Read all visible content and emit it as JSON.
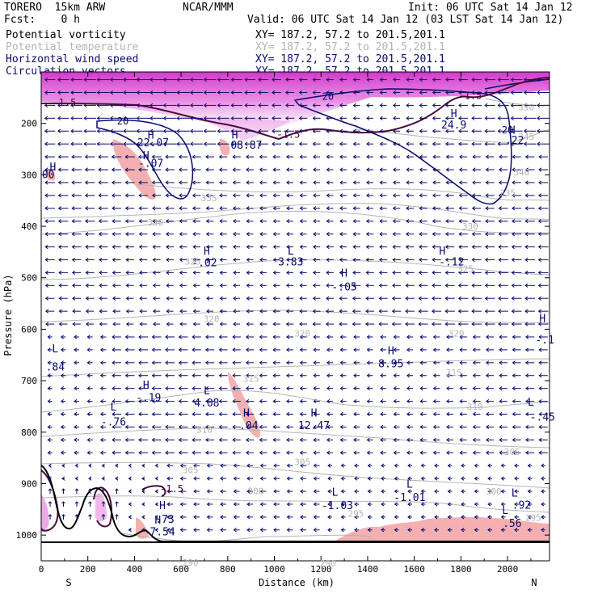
{
  "header": {
    "model": "TORERO  15km ARW",
    "org": "NCAR/MMM",
    "init": "Init: 06 UTC Sat 14 Jan 12",
    "fcst": "Fcst:    0 h",
    "valid": "Valid: 06 UTC Sat 14 Jan 12 (03 LST Sat 14 Jan 12)"
  },
  "fields": [
    {
      "name": "Potential vorticity",
      "xy": "XY= 187.2, 57.2 to 201.5,201.1",
      "color": "#000000"
    },
    {
      "name": "Potential temperature",
      "xy": "XY= 187.2, 57.2 to 201.5,201.1",
      "color": "#b4b4b4"
    },
    {
      "name": "Horizontal wind speed",
      "xy": "XY= 187.2, 57.2 to 201.5,201.1",
      "color": "#0a0a6e"
    },
    {
      "name": "Circulation vectors",
      "xy": "XY= 187.2, 57.2 to 201.5,201.1",
      "color": "#0a0a6e"
    }
  ],
  "colors": {
    "pv_high": "#e040d8",
    "pv_neg": "#f4b0b0",
    "wind_contour": "#0a0a6e",
    "pv_contour": "#4a0a3a",
    "theta_contour": "#b4b4b4",
    "vectors": "#0a0a6e"
  },
  "chart_data": {
    "type": "cross-section",
    "xlabel": "Distance (km)",
    "ylabel": "Pressure (hPa)",
    "xlim": [
      0,
      2180
    ],
    "ylim": [
      1050,
      100
    ],
    "x_ticks": [
      0,
      200,
      400,
      600,
      800,
      1000,
      1200,
      1400,
      1600,
      1800,
      2000
    ],
    "y_ticks": [
      200,
      300,
      400,
      500,
      600,
      700,
      800,
      900,
      1000
    ],
    "endpoints": {
      "left": "S",
      "right": "N"
    },
    "theta_labels": [
      {
        "text": "350",
        "x": 2080,
        "y": 168
      },
      {
        "text": "345",
        "x": 2080,
        "y": 226
      },
      {
        "text": "340",
        "x": 2060,
        "y": 295
      },
      {
        "text": "335",
        "x": 2000,
        "y": 335
      },
      {
        "text": "335",
        "x": 720,
        "y": 345
      },
      {
        "text": "330",
        "x": 490,
        "y": 392
      },
      {
        "text": "330",
        "x": 1840,
        "y": 400
      },
      {
        "text": "325",
        "x": 650,
        "y": 468
      },
      {
        "text": "325",
        "x": 1820,
        "y": 482
      },
      {
        "text": "320",
        "x": 730,
        "y": 580
      },
      {
        "text": "320",
        "x": 1120,
        "y": 608
      },
      {
        "text": "320",
        "x": 1780,
        "y": 608
      },
      {
        "text": "315",
        "x": 900,
        "y": 696
      },
      {
        "text": "315",
        "x": 1770,
        "y": 684
      },
      {
        "text": "310",
        "x": 700,
        "y": 795
      },
      {
        "text": "310",
        "x": 1860,
        "y": 750
      },
      {
        "text": "305",
        "x": 640,
        "y": 873
      },
      {
        "text": "305",
        "x": 1120,
        "y": 858
      },
      {
        "text": "305",
        "x": 2020,
        "y": 838
      },
      {
        "text": "300",
        "x": 920,
        "y": 914
      },
      {
        "text": "300",
        "x": 1940,
        "y": 915
      },
      {
        "text": "295",
        "x": 1350,
        "y": 958
      },
      {
        "text": "295",
        "x": 2110,
        "y": 966
      },
      {
        "text": "290",
        "x": 1230,
        "y": 1055
      },
      {
        "text": "290",
        "x": 640,
        "y": 1053
      }
    ],
    "wind_labels": [
      {
        "text": "20",
        "x": 1230,
        "y": 148
      },
      {
        "text": "20",
        "x": 350,
        "y": 196
      },
      {
        "text": "20",
        "x": 2000,
        "y": 213
      }
    ],
    "pv_labels": [
      {
        "text": "-1.5",
        "x": 100,
        "y": 160
      },
      {
        "text": "-1.5",
        "x": 1060,
        "y": 222
      },
      {
        "text": "-1.5",
        "x": 1840,
        "y": 146
      },
      {
        "text": "-1.5",
        "x": 560,
        "y": 910
      }
    ],
    "extrema": [
      {
        "kind": "H",
        "value": "22.07",
        "x": 480,
        "y": 237,
        "hx": 470,
        "hy": 222
      },
      {
        "kind": "H",
        "value": "-.07",
        "x": 470,
        "y": 277,
        "hx": 450,
        "hy": 262
      },
      {
        "kind": "H",
        "value": "00",
        "x": 30,
        "y": 299,
        "hx": 50,
        "hy": 284
      },
      {
        "kind": "H",
        "value": "08.87",
        "x": 880,
        "y": 241,
        "hx": 830,
        "hy": 222
      },
      {
        "kind": "H",
        "value": "24.9",
        "x": 1770,
        "y": 202,
        "hx": 1770,
        "hy": 180
      },
      {
        "kind": "H",
        "value": ".22",
        "x": 2030,
        "y": 232,
        "hx": 2020,
        "hy": 212
      },
      {
        "kind": "H",
        "value": "-.02",
        "x": 700,
        "y": 470,
        "hx": 710,
        "hy": 447
      },
      {
        "kind": "L",
        "value": "3.83",
        "x": 1070,
        "y": 468,
        "hx": 1070,
        "hy": 447
      },
      {
        "kind": "H",
        "value": "-.05",
        "x": 1300,
        "y": 517,
        "hx": 1300,
        "hy": 490
      },
      {
        "kind": "H",
        "value": "-.12",
        "x": 1760,
        "y": 468,
        "hx": 1720,
        "hy": 447
      },
      {
        "kind": "H",
        "value": "-.1",
        "x": 2160,
        "y": 620,
        "hx": 2150,
        "hy": 578
      },
      {
        "kind": "L",
        "value": ".84",
        "x": 60,
        "y": 672,
        "hx": 60,
        "hy": 637
      },
      {
        "kind": "H",
        "value": "8.95",
        "x": 1500,
        "y": 666,
        "hx": 1500,
        "hy": 641
      },
      {
        "kind": "H",
        "value": "-.19",
        "x": 460,
        "y": 732,
        "hx": 450,
        "hy": 708
      },
      {
        "kind": "L",
        "value": "4.08",
        "x": 710,
        "y": 742,
        "hx": 710,
        "hy": 719
      },
      {
        "kind": "L",
        "value": "-.76",
        "x": 310,
        "y": 779,
        "hx": 310,
        "hy": 750
      },
      {
        "kind": "H",
        "value": ".04",
        "x": 890,
        "y": 786,
        "hx": 880,
        "hy": 762
      },
      {
        "kind": "H",
        "value": "12.47",
        "x": 1170,
        "y": 786,
        "hx": 1170,
        "hy": 762
      },
      {
        "kind": "L",
        "value": "-.45",
        "x": 2150,
        "y": 770,
        "hx": 2100,
        "hy": 741
      },
      {
        "kind": "L",
        "value": "-1.01",
        "x": 1580,
        "y": 926,
        "hx": 1580,
        "hy": 900
      },
      {
        "kind": "L",
        "value": "-1.03",
        "x": 1270,
        "y": 942,
        "hx": 1260,
        "hy": 916
      },
      {
        "kind": "L",
        "value": ".92",
        "x": 2060,
        "y": 941,
        "hx": 2030,
        "hy": 917
      },
      {
        "kind": "L",
        "value": ".56",
        "x": 2020,
        "y": 976,
        "hx": 1990,
        "hy": 951
      },
      {
        "kind": "H",
        "value": ".73",
        "x": 530,
        "y": 968,
        "hx": 520,
        "hy": 942
      },
      {
        "kind": "H",
        "value": "7.54",
        "x": 520,
        "y": 993,
        "hx": 500,
        "hy": 970
      }
    ],
    "grid": false
  }
}
